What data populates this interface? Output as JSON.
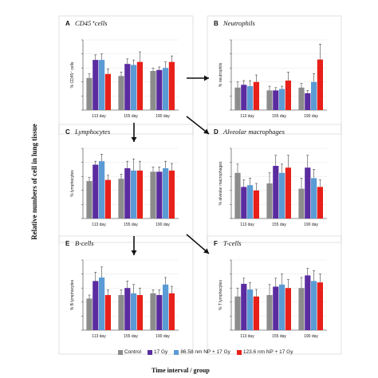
{
  "figure": {
    "outer_ylabel": "Relative numbers of cell in lung tissue",
    "outer_xlabel": "Time interval / group",
    "colors": {
      "Control": "#8c8c8c",
      "17 Gy": "#5a2ca0",
      "86.58 nm NP + 17 Gy": "#5b9bd5",
      "123.6 nm NP + 17 Gy": "#e8201a"
    }
  },
  "legend": {
    "items": [
      {
        "label": "Control",
        "color": "#8c8c8c"
      },
      {
        "label": "17 Gy",
        "color": "#5a2ca0"
      },
      {
        "label": "86.58 nm NP + 17 Gy",
        "color": "#5b9bd5"
      },
      {
        "label": "123.6 nm NP + 17 Gy",
        "color": "#e8201a"
      }
    ]
  },
  "chart_data": [
    {
      "type": "bar",
      "letter": "A",
      "title": "CD45⁺cells",
      "ylabel": "% CD45⁺ cells",
      "categories": [
        "113 day",
        "155 day",
        "190 day"
      ],
      "series": [
        {
          "name": "Control",
          "values": [
            16,
            17,
            19.5
          ]
        },
        {
          "name": "17 Gy",
          "values": [
            25,
            23,
            20
          ]
        },
        {
          "name": "86.58 nm NP + 17 Gy",
          "values": [
            25,
            22.5,
            21
          ]
        },
        {
          "name": "123.6 nm NP + 17 Gy",
          "values": [
            18,
            24,
            24
          ]
        }
      ],
      "errors": [
        [
          2,
          2,
          1.5
        ],
        [
          2.5,
          2.5,
          1.5
        ],
        [
          3,
          2.5,
          3
        ],
        [
          2.5,
          5,
          3
        ]
      ],
      "ylim": [
        0,
        35
      ]
    },
    {
      "type": "bar",
      "letter": "B",
      "title": "Neutrophils",
      "ylabel": "% neutrophils",
      "categories": [
        "113 day",
        "155 day",
        "190 day"
      ],
      "series": [
        {
          "name": "Control",
          "values": [
            0.8,
            0.7,
            0.8
          ]
        },
        {
          "name": "17 Gy",
          "values": [
            0.9,
            0.7,
            0.6
          ]
        },
        {
          "name": "86.58 nm NP + 17 Gy",
          "values": [
            0.85,
            0.75,
            1.0
          ]
        },
        {
          "name": "123.6 nm NP + 17 Gy",
          "values": [
            1.0,
            1.05,
            1.8
          ]
        }
      ],
      "errors": [
        [
          0.2,
          0.15,
          0.15
        ],
        [
          0.15,
          0.1,
          0.1
        ],
        [
          0.2,
          0.1,
          0.3
        ],
        [
          0.25,
          0.3,
          0.55
        ]
      ],
      "ylim": [
        0,
        2.5
      ]
    },
    {
      "type": "bar",
      "letter": "C",
      "title": "Lymphocytes",
      "ylabel": "% lymphocytes",
      "categories": [
        "113 day",
        "155 day",
        "190 day"
      ],
      "series": [
        {
          "name": "Control",
          "values": [
            16,
            17,
            20
          ]
        },
        {
          "name": "17 Gy",
          "values": [
            23,
            21.5,
            20
          ]
        },
        {
          "name": "86.58 nm NP + 17 Gy",
          "values": [
            24.5,
            20.5,
            21.5
          ]
        },
        {
          "name": "123.6 nm NP + 17 Gy",
          "values": [
            16.5,
            20.5,
            20.5
          ]
        }
      ],
      "errors": [
        [
          1.5,
          2,
          2
        ],
        [
          1.5,
          3,
          2
        ],
        [
          3,
          5,
          3
        ],
        [
          2,
          4,
          3
        ]
      ],
      "ylim": [
        0,
        30
      ]
    },
    {
      "type": "bar",
      "letter": "D",
      "title": "Alveolar macrophages",
      "ylabel": "% alveolar macrophages",
      "categories": [
        "113 day",
        "155 day",
        "190 day"
      ],
      "series": [
        {
          "name": "Control",
          "values": [
            2.6,
            2.0,
            1.7
          ]
        },
        {
          "name": "17 Gy",
          "values": [
            1.8,
            3.0,
            2.9
          ]
        },
        {
          "name": "86.58 nm NP + 17 Gy",
          "values": [
            1.9,
            2.6,
            2.3
          ]
        },
        {
          "name": "123.6 nm NP + 17 Gy",
          "values": [
            1.6,
            2.9,
            1.8
          ]
        }
      ],
      "errors": [
        [
          0.5,
          0.6,
          0.6
        ],
        [
          0.4,
          0.6,
          0.7
        ],
        [
          0.4,
          0.5,
          0.5
        ],
        [
          0.4,
          0.7,
          0.4
        ]
      ],
      "ylim": [
        0,
        4
      ]
    },
    {
      "type": "bar",
      "letter": "E",
      "title": "B-cells",
      "ylabel": "% B lymphocytes",
      "categories": [
        "113 day",
        "155 day",
        "190 day"
      ],
      "series": [
        {
          "name": "Control",
          "values": [
            9,
            10,
            10.5
          ]
        },
        {
          "name": "17 Gy",
          "values": [
            14,
            12,
            10
          ]
        },
        {
          "name": "86.58 nm NP + 17 Gy",
          "values": [
            15,
            10.5,
            13
          ]
        },
        {
          "name": "123.6 nm NP + 17 Gy",
          "values": [
            10,
            10,
            10.5
          ]
        }
      ],
      "errors": [
        [
          1,
          1.5,
          1
        ],
        [
          2.5,
          2,
          1.5
        ],
        [
          3,
          2.5,
          2
        ],
        [
          1.5,
          2,
          2
        ]
      ],
      "ylim": [
        0,
        20
      ]
    },
    {
      "type": "bar",
      "letter": "F",
      "title": "T-cells",
      "ylabel": "% T lymphocytes",
      "categories": [
        "113 day",
        "155 day",
        "190 day"
      ],
      "series": [
        {
          "name": "Control",
          "values": [
            4.8,
            5.0,
            6.0
          ]
        },
        {
          "name": "17 Gy",
          "values": [
            6.6,
            6.2,
            7.8
          ]
        },
        {
          "name": "86.58 nm NP + 17 Gy",
          "values": [
            5.8,
            6.5,
            7.0
          ]
        },
        {
          "name": "123.6 nm NP + 17 Gy",
          "values": [
            4.8,
            6.0,
            6.8
          ]
        }
      ],
      "errors": [
        [
          1.2,
          1.5,
          1.5
        ],
        [
          0.8,
          1.2,
          1.0
        ],
        [
          1.0,
          1.5,
          1.5
        ],
        [
          1.0,
          1.2,
          1.2
        ]
      ],
      "ylim": [
        0,
        10
      ]
    }
  ]
}
